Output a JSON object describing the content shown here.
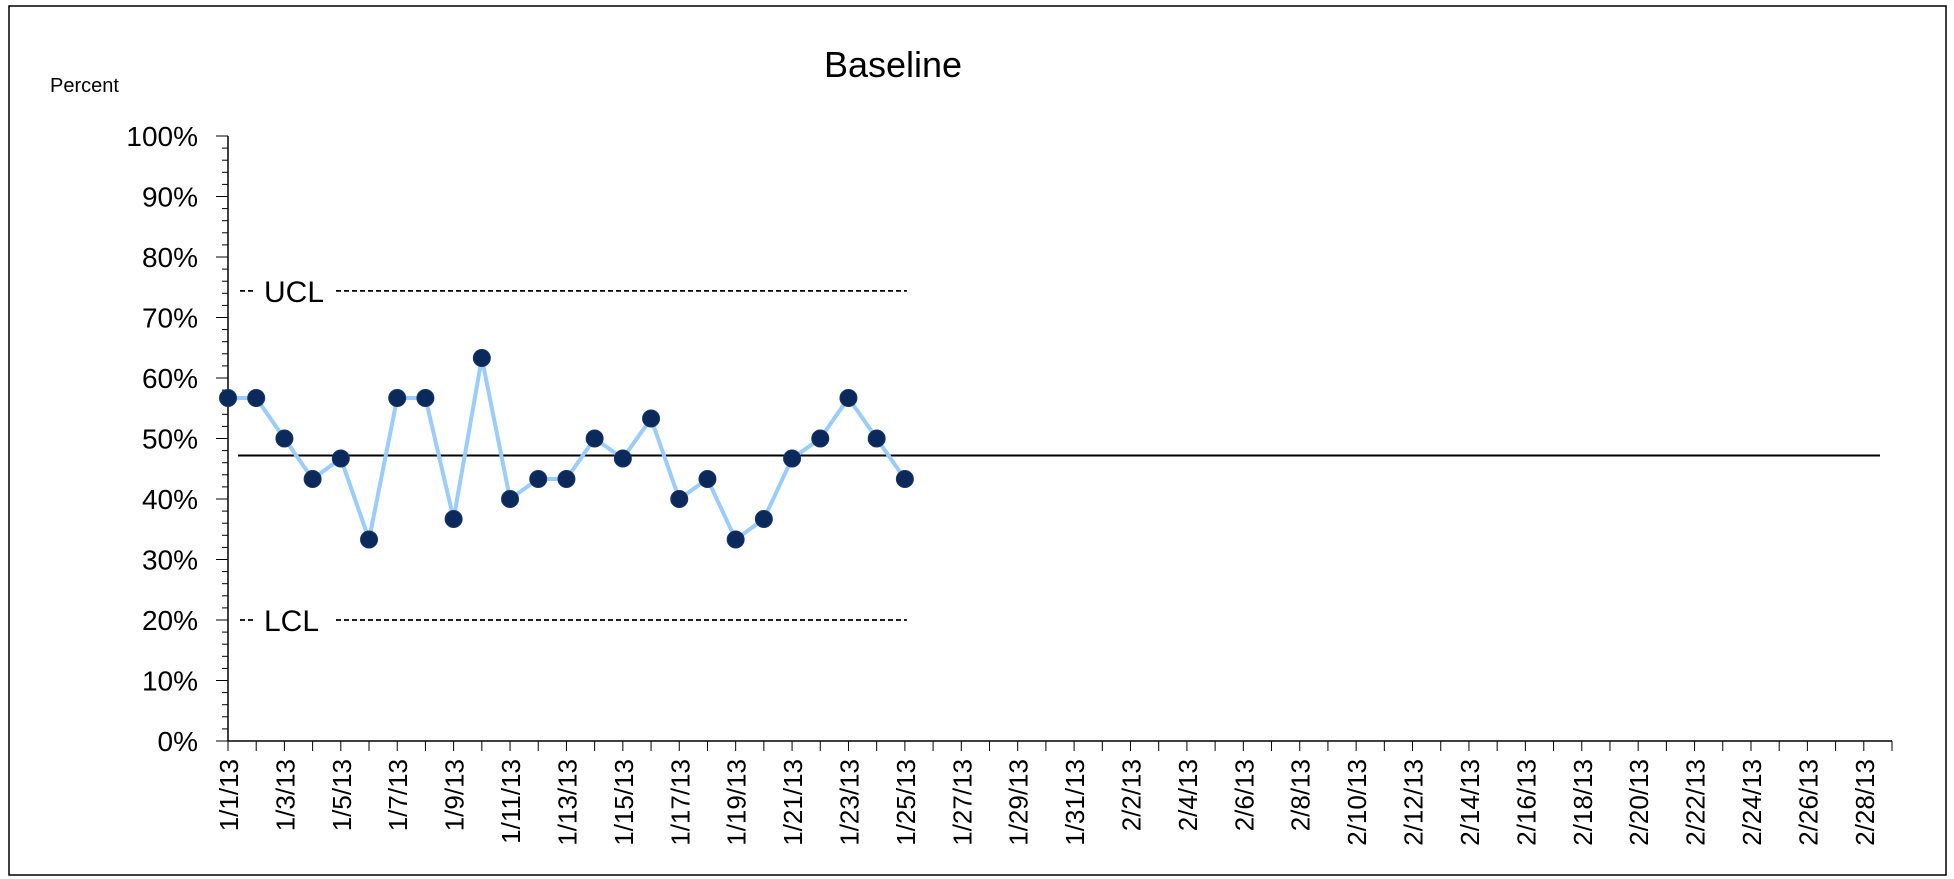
{
  "chart_data": {
    "type": "line",
    "title": "Baseline",
    "ylabel": "Percent",
    "xlabel": "",
    "ylim": [
      0,
      1
    ],
    "y_ticks": [
      "0%",
      "10%",
      "20%",
      "30%",
      "40%",
      "50%",
      "60%",
      "70%",
      "80%",
      "90%",
      "100%"
    ],
    "x_start_date": "2013-01-01",
    "x_dates": [
      "1/1/13",
      "1/2/13",
      "1/3/13",
      "1/4/13",
      "1/5/13",
      "1/6/13",
      "1/7/13",
      "1/8/13",
      "1/9/13",
      "1/10/13",
      "1/11/13",
      "1/12/13",
      "1/13/13",
      "1/14/13",
      "1/15/13",
      "1/16/13",
      "1/17/13",
      "1/18/13",
      "1/19/13",
      "1/20/13",
      "1/21/13",
      "1/22/13",
      "1/23/13",
      "1/24/13",
      "1/25/13",
      "1/26/13",
      "1/27/13",
      "1/28/13",
      "1/29/13",
      "1/30/13",
      "1/31/13",
      "2/1/13",
      "2/2/13",
      "2/3/13",
      "2/4/13",
      "2/5/13",
      "2/6/13",
      "2/7/13",
      "2/8/13",
      "2/9/13",
      "2/10/13",
      "2/11/13",
      "2/12/13",
      "2/13/13",
      "2/14/13",
      "2/15/13",
      "2/16/13",
      "2/17/13",
      "2/18/13",
      "2/19/13",
      "2/20/13",
      "2/21/13",
      "2/22/13",
      "2/23/13",
      "2/24/13",
      "2/25/13",
      "2/26/13",
      "2/27/13",
      "2/28/13",
      "3/1/13"
    ],
    "x_tick_labels": [
      "1/1/13",
      "1/3/13",
      "1/5/13",
      "1/7/13",
      "1/9/13",
      "1/11/13",
      "1/13/13",
      "1/15/13",
      "1/17/13",
      "1/19/13",
      "1/21/13",
      "1/23/13",
      "1/25/13",
      "1/27/13",
      "1/29/13",
      "1/31/13",
      "2/2/13",
      "2/4/13",
      "2/6/13",
      "2/8/13",
      "2/10/13",
      "2/12/13",
      "2/14/13",
      "2/16/13",
      "2/18/13",
      "2/20/13",
      "2/22/13",
      "2/24/13",
      "2/26/13",
      "2/28/13"
    ],
    "series": [
      {
        "values": [
          0.567,
          0.567,
          0.5,
          0.433,
          0.467,
          0.333,
          0.567,
          0.567,
          0.367,
          0.633,
          0.4,
          0.433,
          0.433,
          0.5,
          0.467,
          0.533,
          0.4,
          0.433,
          0.333,
          0.367,
          0.467,
          0.5,
          0.567,
          0.5,
          0.433
        ]
      }
    ],
    "center_line": 0.472,
    "ucl": {
      "label": "UCL",
      "value": 0.744
    },
    "lcl": {
      "label": "LCL",
      "value": 0.2
    },
    "grid": false,
    "colors": {
      "line": "#99ccff",
      "marker": "#0b2a5b",
      "center": "#000000",
      "limits": "#000000"
    }
  }
}
